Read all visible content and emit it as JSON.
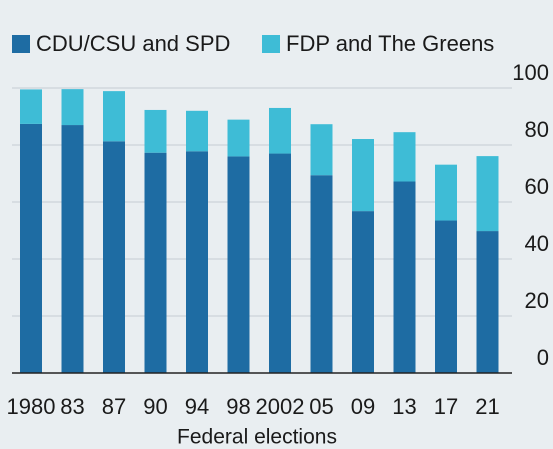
{
  "chart_data": {
    "type": "bar",
    "stacked": true,
    "x_label": "Federal elections",
    "categories": [
      "1980",
      "83",
      "87",
      "90",
      "94",
      "98",
      "2002",
      "05",
      "09",
      "13",
      "17",
      "21"
    ],
    "series": [
      {
        "name": "CDU/CSU and SPD",
        "color": "#1e6ca3",
        "values": [
          87.4,
          87,
          81.3,
          77.3,
          77.8,
          76,
          77,
          69.4,
          56.8,
          67.2,
          53.5,
          49.8
        ]
      },
      {
        "name": "FDP and The Greens",
        "color": "#3ebcd6",
        "values": [
          12.1,
          12.6,
          17.6,
          15,
          14.2,
          12.9,
          16,
          17.9,
          25.3,
          17.3,
          19.6,
          26.3
        ]
      }
    ],
    "ylim": [
      0,
      100
    ],
    "yticks": [
      0,
      20,
      40,
      60,
      80,
      100
    ],
    "grid": true
  }
}
